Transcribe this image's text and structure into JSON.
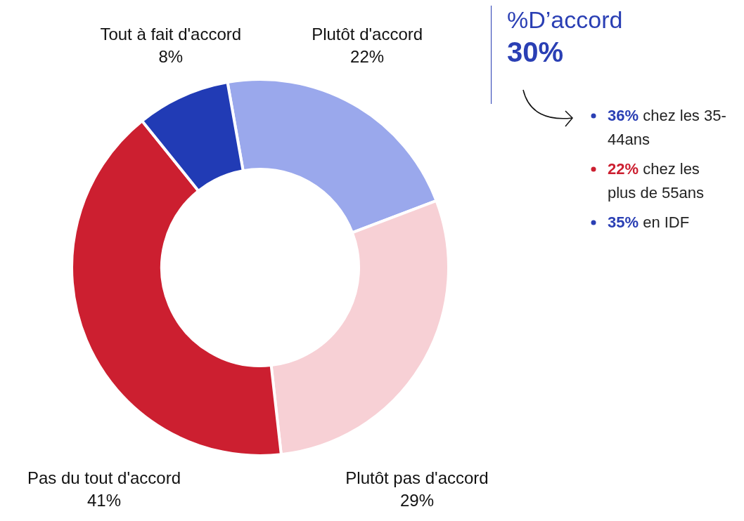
{
  "chart_data": {
    "type": "donut",
    "categories": [
      "Plutôt d'accord",
      "Plutôt pas d'accord",
      "Pas du tout d'accord",
      "Tout à fait d'accord"
    ],
    "values": [
      22,
      29,
      41,
      8
    ],
    "colors": [
      "#9aa8ec",
      "#f7d0d5",
      "#cc1f30",
      "#213bb5"
    ],
    "value_labels": [
      "22%",
      "29%",
      "41%",
      "8%"
    ],
    "annotations": [
      "%D’accord",
      "30%",
      "36% chez les 35-44ans",
      "22% chez les plus de 55ans",
      "35% en IDF"
    ]
  }
}
